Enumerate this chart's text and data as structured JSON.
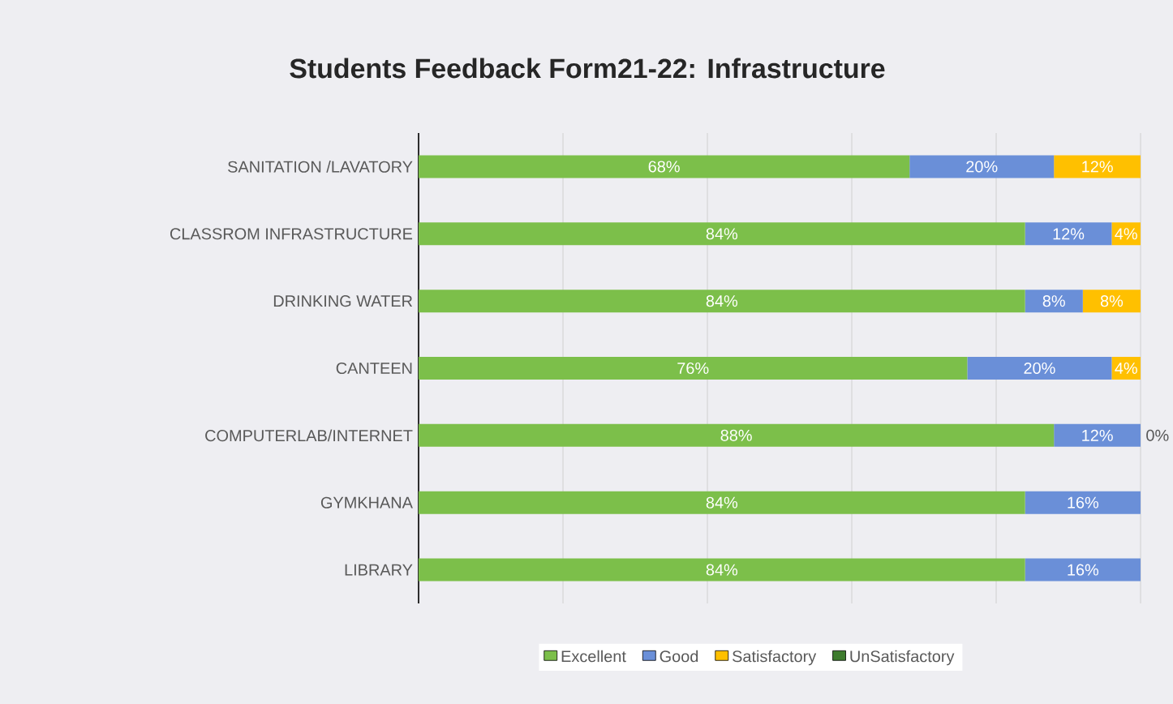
{
  "chart_data": {
    "type": "bar",
    "orientation": "horizontal",
    "stacked": true,
    "title": "Students Feedback Form21-22: Infrastructure",
    "categories": [
      "SANITATION /LAVATORY",
      "CLASSROM INFRASTRUCTURE",
      "DRINKING WATER",
      "CANTEEN",
      "COMPUTERLAB/INTERNET",
      "GYMKHANA",
      "LIBRARY"
    ],
    "series": [
      {
        "name": "Excellent",
        "color": "#7cbf4a",
        "values": [
          68,
          84,
          84,
          76,
          88,
          84,
          84
        ],
        "value_labels": [
          "68%",
          "84%",
          "84%",
          "76%",
          "88%",
          "84%",
          "84%"
        ]
      },
      {
        "name": "Good",
        "color": "#6a8fd8",
        "values": [
          20,
          12,
          8,
          20,
          12,
          16,
          16
        ],
        "value_labels": [
          "20%",
          "12%",
          "8%",
          "20%",
          "12%",
          "16%",
          "16%"
        ]
      },
      {
        "name": "Satisfactory",
        "color": "#ffc000",
        "values": [
          12,
          4,
          8,
          4,
          0,
          0,
          0
        ],
        "value_labels": [
          "12%",
          "4%",
          "8%",
          "4%",
          "0%",
          null,
          null
        ]
      },
      {
        "name": "UnSatisfactory",
        "color": "#3e7c2e",
        "values": [
          0,
          0,
          0,
          0,
          0,
          0,
          0
        ]
      }
    ],
    "xlim": [
      0,
      100
    ],
    "xticks": [
      {
        "value": 0,
        "label": null
      },
      {
        "value": 20,
        "label": null
      },
      {
        "value": 40,
        "label": null
      },
      {
        "value": 60,
        "label": null
      },
      {
        "value": 80,
        "label": null
      },
      {
        "value": 100,
        "label": null
      }
    ],
    "tick_labels": "y",
    "grid": "x",
    "legend": "bottom"
  }
}
